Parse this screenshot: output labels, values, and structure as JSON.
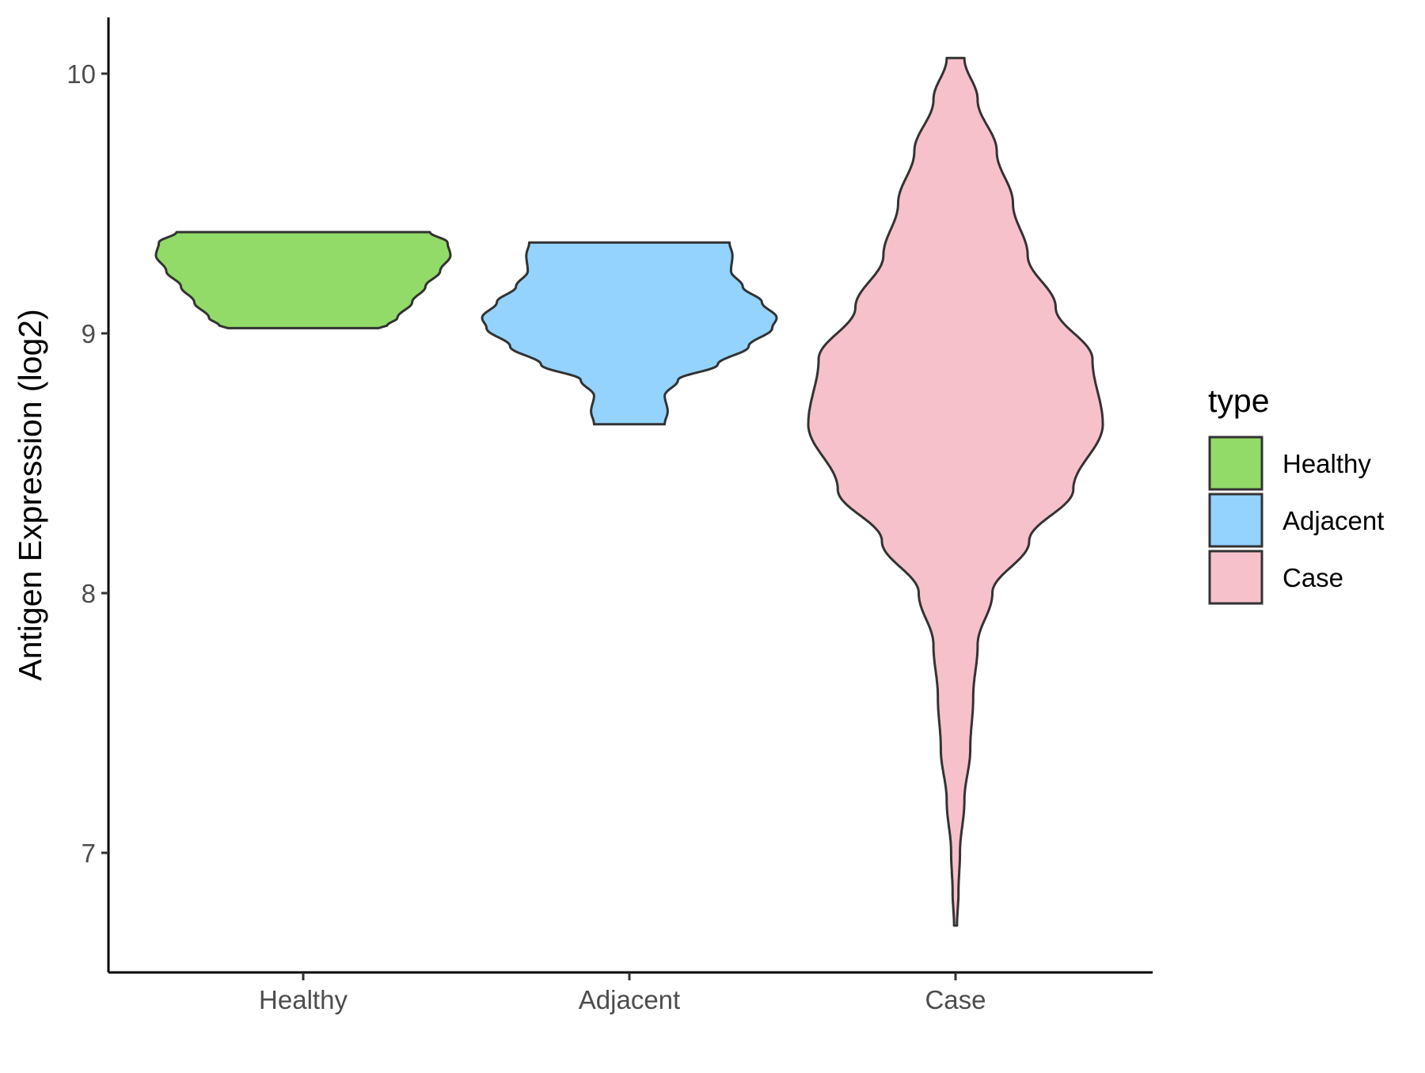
{
  "chart_data": {
    "type": "violin",
    "title": "",
    "xlabel": "",
    "ylabel": "Antigen Expression (log2)",
    "ylim": [
      6.55,
      10.23
    ],
    "yticks": [
      7,
      8,
      9,
      10
    ],
    "categories": [
      "Healthy",
      "Adjacent",
      "Case"
    ],
    "grid": false,
    "legend": {
      "title": "type",
      "position": "right",
      "entries": [
        "Healthy",
        "Adjacent",
        "Case"
      ]
    },
    "series": [
      {
        "name": "Healthy",
        "color": "#93db69",
        "range": [
          9.02,
          9.39
        ],
        "profile": [
          [
            9.02,
            0.51
          ],
          [
            9.03,
            0.57
          ],
          [
            9.06,
            0.64
          ],
          [
            9.12,
            0.74
          ],
          [
            9.18,
            0.83
          ],
          [
            9.24,
            0.93
          ],
          [
            9.3,
            1.0
          ],
          [
            9.35,
            0.98
          ],
          [
            9.39,
            0.86
          ]
        ]
      },
      {
        "name": "Adjacent",
        "color": "#93d3fe",
        "range": [
          8.65,
          9.35
        ],
        "profile": [
          [
            8.65,
            0.24
          ],
          [
            8.7,
            0.26
          ],
          [
            8.76,
            0.24
          ],
          [
            8.82,
            0.33
          ],
          [
            8.88,
            0.6
          ],
          [
            8.95,
            0.81
          ],
          [
            9.02,
            0.97
          ],
          [
            9.06,
            1.0
          ],
          [
            9.12,
            0.9
          ],
          [
            9.18,
            0.77
          ],
          [
            9.24,
            0.69
          ],
          [
            9.3,
            0.7
          ],
          [
            9.35,
            0.68
          ]
        ]
      },
      {
        "name": "Case",
        "color": "#f7c1cb",
        "range": [
          6.72,
          10.06
        ],
        "profile": [
          [
            6.72,
            0.01
          ],
          [
            6.85,
            0.02
          ],
          [
            7.0,
            0.03
          ],
          [
            7.2,
            0.06
          ],
          [
            7.4,
            0.1
          ],
          [
            7.6,
            0.12
          ],
          [
            7.8,
            0.15
          ],
          [
            8.0,
            0.25
          ],
          [
            8.2,
            0.5
          ],
          [
            8.4,
            0.8
          ],
          [
            8.65,
            1.0
          ],
          [
            8.9,
            0.93
          ],
          [
            9.1,
            0.68
          ],
          [
            9.3,
            0.49
          ],
          [
            9.5,
            0.39
          ],
          [
            9.7,
            0.28
          ],
          [
            9.9,
            0.15
          ],
          [
            10.06,
            0.06
          ]
        ]
      }
    ]
  }
}
